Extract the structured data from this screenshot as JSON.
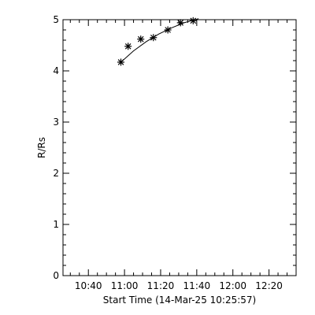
{
  "chart_data": {
    "type": "scatter",
    "xlabel": "Start Time (14-Mar-25 10:25:57)",
    "ylabel": "R/Rs",
    "xlim": [
      "10:25:57",
      "12:35:00"
    ],
    "ylim": [
      0,
      5
    ],
    "x_ticks": [
      "10:40",
      "11:00",
      "11:20",
      "11:40",
      "12:00",
      "12:20"
    ],
    "y_ticks": [
      "0",
      "1",
      "2",
      "3",
      "4",
      "5"
    ],
    "grid": false,
    "series": [
      {
        "marker": "asterisk",
        "x": [
          "10:58",
          "11:02",
          "11:09",
          "11:16",
          "11:24",
          "11:31",
          "11:38"
        ],
        "y": [
          4.17,
          4.48,
          4.62,
          4.65,
          4.8,
          4.94,
          4.98
        ]
      }
    ],
    "fit": {
      "type": "curve",
      "x": [
        "10:58",
        "11:05",
        "11:12",
        "11:19",
        "11:26",
        "11:33",
        "11:41"
      ],
      "y": [
        4.17,
        4.39,
        4.57,
        4.72,
        4.84,
        4.94,
        5.02
      ]
    }
  }
}
